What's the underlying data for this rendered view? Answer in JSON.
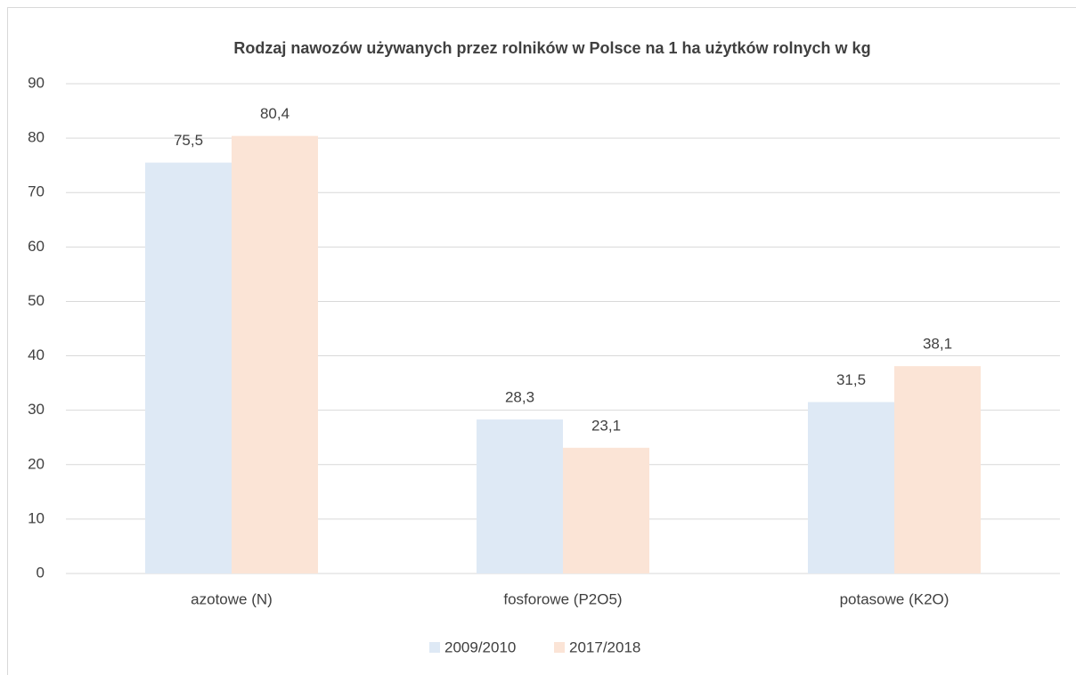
{
  "chart_data": {
    "type": "bar",
    "title": "Rodzaj nawozów używanych przez rolników w Polsce na 1 ha użytków rolnych w kg",
    "categories": [
      "azotowe (N)",
      "fosforowe (P2O5)",
      "potasowe (K2O)"
    ],
    "series": [
      {
        "name": "2009/2010",
        "color": "#dee9f5",
        "values": [
          75.5,
          28.3,
          31.5
        ],
        "value_labels": [
          "75,5",
          "28,3",
          "31,5"
        ]
      },
      {
        "name": "2017/2018",
        "color": "#fbe4d6",
        "values": [
          80.4,
          23.1,
          38.1
        ],
        "value_labels": [
          "80,4",
          "23,1",
          "38,1"
        ]
      }
    ],
    "ylim": [
      0,
      90
    ],
    "yticks": [
      0,
      10,
      20,
      30,
      40,
      50,
      60,
      70,
      80,
      90
    ],
    "grid": true,
    "legend": "bottom"
  }
}
